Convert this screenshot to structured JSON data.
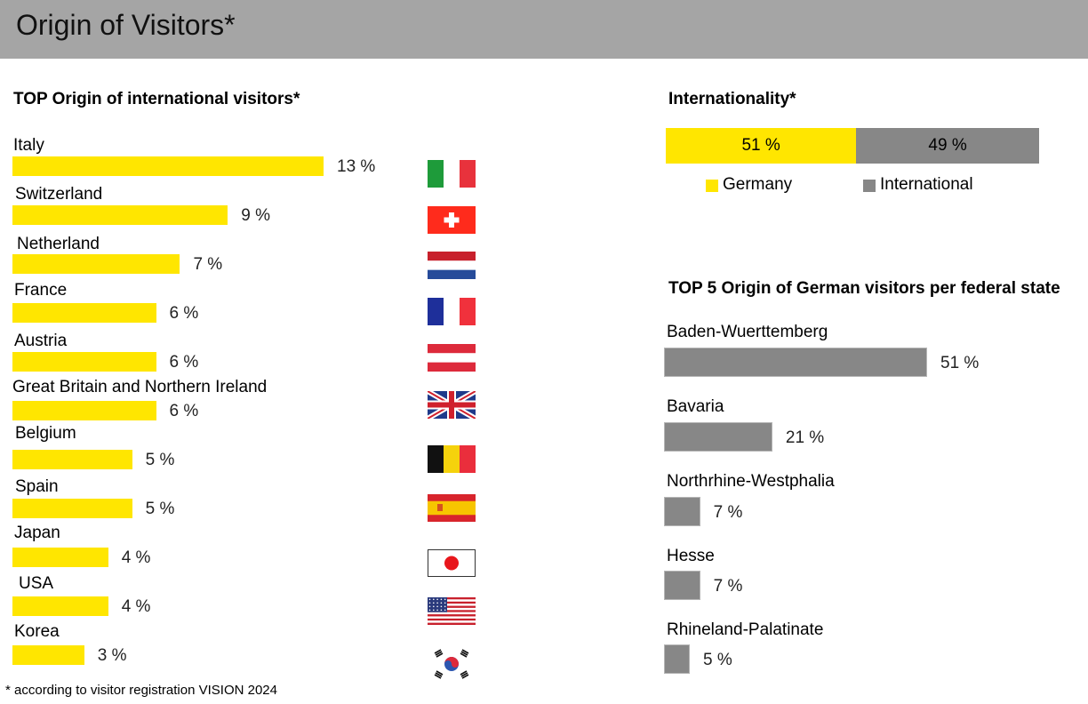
{
  "header": {
    "title": "Origin of Visitors*"
  },
  "footnote": "* according to visitor registration VISION 2024",
  "colors": {
    "germany": "#ffe600",
    "international": "#878787",
    "header_bg": "#a5a5a5"
  },
  "chart_data": [
    {
      "type": "bar",
      "orientation": "horizontal",
      "title": "TOP Origin of international visitors*",
      "categories": [
        "Italy",
        "Switzerland",
        "Netherland",
        "France",
        "Austria",
        "Great Britain and Northern Ireland",
        "Belgium",
        "Spain",
        "Japan",
        "USA",
        "Korea"
      ],
      "values": [
        13,
        9,
        7,
        6,
        6,
        6,
        5,
        5,
        4,
        4,
        3
      ],
      "value_labels": [
        "13 %",
        "9 %",
        "7 %",
        "6 %",
        "6 %",
        "6 %",
        "5 %",
        "5 %",
        "4 %",
        "4 %",
        "3 %"
      ],
      "flag_icons": [
        "italy-flag-icon",
        "switzerland-flag-icon",
        "netherlands-flag-icon",
        "france-flag-icon",
        "austria-flag-icon",
        "uk-flag-icon",
        "belgium-flag-icon",
        "spain-flag-icon",
        "japan-flag-icon",
        "usa-flag-icon",
        "korea-flag-icon"
      ],
      "color": "#ffe600"
    },
    {
      "type": "bar",
      "orientation": "stacked-horizontal",
      "title": "Internationality*",
      "series": [
        {
          "name": "Germany",
          "value": 51,
          "label": "51 %",
          "color": "#ffe600"
        },
        {
          "name": "International",
          "value": 49,
          "label": "49 %",
          "color": "#878787"
        }
      ],
      "legend": "bottom"
    },
    {
      "type": "bar",
      "orientation": "horizontal",
      "title": "TOP 5 Origin of German visitors per federal state",
      "categories": [
        "Baden-Wuerttemberg",
        "Bavaria",
        "Northrhine-Westphalia",
        "Hesse",
        "Rhineland-Palatinate"
      ],
      "values": [
        51,
        21,
        7,
        7,
        5
      ],
      "value_labels": [
        "51 %",
        "21 %",
        "7 %",
        "7 %",
        "5 %"
      ],
      "color": "#878787"
    }
  ]
}
